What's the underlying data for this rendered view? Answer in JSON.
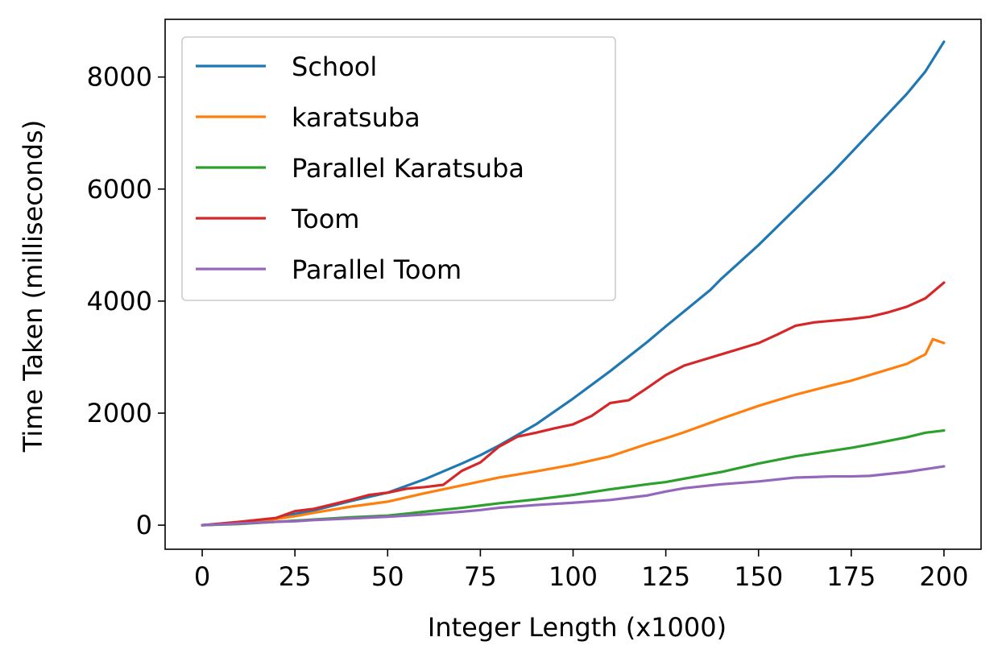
{
  "chart_data": {
    "type": "line",
    "xlabel": "Integer Length (x1000)",
    "ylabel": "Time Taken (milliseconds)",
    "xlim": [
      -10,
      210
    ],
    "ylim": [
      -430,
      9030
    ],
    "xticks": [
      0,
      25,
      50,
      75,
      100,
      125,
      150,
      175,
      200
    ],
    "yticks": [
      0,
      2000,
      4000,
      6000,
      8000
    ],
    "grid": false,
    "legend_position": "top-left",
    "series": [
      {
        "name": "School",
        "color": "#1f77b4",
        "x": [
          0,
          10,
          20,
          25,
          30,
          40,
          50,
          60,
          70,
          75,
          80,
          90,
          100,
          110,
          120,
          125,
          130,
          137,
          140,
          145,
          150,
          160,
          170,
          175,
          180,
          190,
          195,
          200
        ],
        "y": [
          0,
          30,
          120,
          200,
          260,
          430,
          580,
          820,
          1100,
          1250,
          1420,
          1800,
          2260,
          2750,
          3270,
          3550,
          3820,
          4200,
          4400,
          4700,
          5000,
          5650,
          6300,
          6650,
          7000,
          7700,
          8100,
          8630
        ]
      },
      {
        "name": "karatsuba",
        "color": "#ff7f0e",
        "x": [
          0,
          10,
          20,
          25,
          30,
          40,
          50,
          60,
          70,
          75,
          80,
          90,
          100,
          110,
          120,
          125,
          130,
          140,
          150,
          160,
          170,
          175,
          180,
          190,
          195,
          197,
          200
        ],
        "y": [
          0,
          30,
          110,
          160,
          220,
          330,
          420,
          570,
          710,
          780,
          850,
          960,
          1080,
          1230,
          1450,
          1550,
          1660,
          1900,
          2130,
          2330,
          2500,
          2580,
          2680,
          2880,
          3050,
          3320,
          3250
        ]
      },
      {
        "name": "Parallel Karatsuba",
        "color": "#2ca02c",
        "x": [
          0,
          10,
          20,
          25,
          30,
          40,
          50,
          60,
          70,
          75,
          80,
          90,
          100,
          110,
          120,
          125,
          130,
          140,
          150,
          160,
          170,
          175,
          180,
          190,
          195,
          200
        ],
        "y": [
          0,
          20,
          60,
          80,
          100,
          140,
          170,
          240,
          310,
          350,
          390,
          460,
          540,
          640,
          730,
          770,
          830,
          950,
          1100,
          1230,
          1330,
          1380,
          1440,
          1570,
          1650,
          1690
        ]
      },
      {
        "name": "Toom",
        "color": "#d62728",
        "x": [
          0,
          10,
          20,
          25,
          30,
          40,
          45,
          50,
          55,
          60,
          65,
          70,
          75,
          80,
          85,
          90,
          95,
          100,
          105,
          110,
          115,
          120,
          125,
          130,
          135,
          140,
          145,
          150,
          155,
          160,
          165,
          170,
          175,
          180,
          185,
          190,
          195,
          200
        ],
        "y": [
          0,
          60,
          130,
          250,
          290,
          450,
          540,
          580,
          650,
          680,
          720,
          970,
          1120,
          1400,
          1580,
          1650,
          1730,
          1800,
          1950,
          2180,
          2230,
          2450,
          2680,
          2850,
          2950,
          3050,
          3150,
          3250,
          3400,
          3560,
          3620,
          3650,
          3680,
          3720,
          3800,
          3900,
          4050,
          4330
        ]
      },
      {
        "name": "Parallel Toom",
        "color": "#9467bd",
        "x": [
          0,
          10,
          20,
          25,
          30,
          40,
          50,
          60,
          70,
          75,
          80,
          90,
          100,
          110,
          120,
          125,
          130,
          140,
          150,
          160,
          170,
          175,
          180,
          190,
          195,
          200
        ],
        "y": [
          0,
          30,
          60,
          70,
          90,
          120,
          150,
          190,
          240,
          270,
          310,
          360,
          400,
          450,
          530,
          600,
          660,
          730,
          780,
          850,
          870,
          870,
          880,
          950,
          1000,
          1050
        ]
      }
    ]
  }
}
